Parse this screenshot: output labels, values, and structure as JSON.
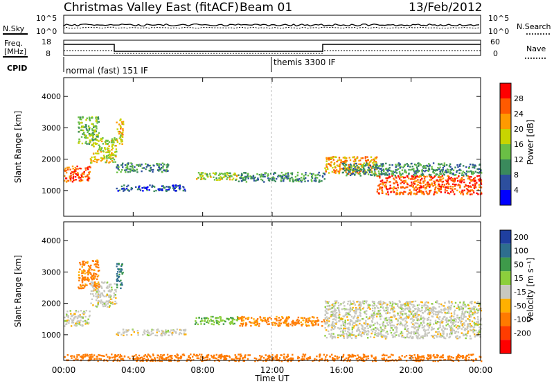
{
  "header": {
    "title": "Christmas Valley East (fitACF)",
    "beam": "Beam 01",
    "date": "13/Feb/2012"
  },
  "noise_panel": {
    "left_label": "N.Sky",
    "left_ticks": [
      "10^5",
      "10^0"
    ],
    "right_ticks": [
      "10^5",
      "10^0"
    ],
    "right_label": "N.Search"
  },
  "freq_panel": {
    "left_label_1": "Freq.",
    "left_label_2": "[MHz]",
    "left_ticks": [
      "18",
      "8"
    ],
    "right_ticks": [
      "60",
      "0"
    ],
    "right_label": "Nave"
  },
  "cpid": {
    "label": "CPID",
    "modes": [
      {
        "name": "normal (fast) 151 IF",
        "start": "00:00",
        "end": "12:00"
      },
      {
        "name": "themis 3300 IF",
        "start": "12:00",
        "end": "24:00"
      }
    ]
  },
  "power_panel": {
    "ylabel": "Slant Range [km]",
    "yticks": [
      "1000",
      "2000",
      "3000",
      "4000"
    ],
    "cbar_label": "Power [dB]",
    "cbar_ticks": [
      "4",
      "8",
      "12",
      "16",
      "20",
      "24",
      "28"
    ],
    "colors": [
      "#0000ff",
      "#2d4f9e",
      "#3a8a5c",
      "#6abf45",
      "#c8d400",
      "#ff9a00",
      "#ff5a00",
      "#ff0000"
    ]
  },
  "velocity_panel": {
    "ylabel": "Slant Range [km]",
    "yticks": [
      "1000",
      "2000",
      "3000",
      "4000"
    ],
    "cbar_label": "Velocity [m s⁻¹]",
    "cbar_ticks": [
      "200",
      "100",
      "50",
      "15",
      "-15",
      "-50",
      "-100",
      "-200"
    ],
    "colors": [
      "#1f3fa0",
      "#2e6e8e",
      "#3e9a4a",
      "#8ccf3c",
      "#c8c8c0",
      "#ffb000",
      "#ff7a00",
      "#ff3c00",
      "#ff0000"
    ]
  },
  "x_axis": {
    "label": "Time UT",
    "ticks": [
      "00:00",
      "04:00",
      "08:00",
      "12:00",
      "16:00",
      "20:00",
      "00:00"
    ]
  },
  "chart_data": {
    "type": "heatmap",
    "x_range_hours": [
      0,
      24
    ],
    "y_range_km": [
      180,
      4600
    ],
    "power_scatter_bands": [
      {
        "t0": 0.0,
        "t1": 1.5,
        "r0": 1300,
        "r1": 1800,
        "power_db": 26
      },
      {
        "t0": 1.5,
        "t1": 3.0,
        "r0": 1900,
        "r1": 2700,
        "power_db": 18
      },
      {
        "t0": 0.8,
        "t1": 2.0,
        "r0": 2500,
        "r1": 3400,
        "power_db": 14
      },
      {
        "t0": 3.0,
        "t1": 3.4,
        "r0": 2500,
        "r1": 3300,
        "power_db": 20
      },
      {
        "t0": 3.0,
        "t1": 6.0,
        "r0": 1600,
        "r1": 1900,
        "power_db": 10
      },
      {
        "t0": 3.0,
        "t1": 7.0,
        "r0": 1000,
        "r1": 1200,
        "power_db": 6
      },
      {
        "t0": 7.5,
        "t1": 10.0,
        "r0": 1350,
        "r1": 1600,
        "power_db": 16
      },
      {
        "t0": 10.0,
        "t1": 15.0,
        "r0": 1300,
        "r1": 1600,
        "power_db": 10
      },
      {
        "t0": 15.0,
        "t1": 18.0,
        "r0": 1550,
        "r1": 2100,
        "power_db": 22
      },
      {
        "t0": 18.0,
        "t1": 24.0,
        "r0": 900,
        "r1": 1500,
        "power_db": 26
      },
      {
        "t0": 16.0,
        "t1": 24.0,
        "r0": 1500,
        "r1": 1900,
        "power_db": 10
      }
    ],
    "velocity_scatter_bands": [
      {
        "t0": 0.0,
        "t1": 1.5,
        "r0": 1300,
        "r1": 1800,
        "velocity": 0
      },
      {
        "t0": 1.5,
        "t1": 3.0,
        "r0": 1900,
        "r1": 2700,
        "velocity": 0
      },
      {
        "t0": 0.8,
        "t1": 2.0,
        "r0": 2500,
        "r1": 3400,
        "velocity": -60
      },
      {
        "t0": 3.0,
        "t1": 3.4,
        "r0": 2500,
        "r1": 3300,
        "velocity": 100
      },
      {
        "t0": 3.0,
        "t1": 7.0,
        "r0": 1000,
        "r1": 1200,
        "velocity": 0
      },
      {
        "t0": 7.5,
        "t1": 10.0,
        "r0": 1350,
        "r1": 1600,
        "velocity": 40
      },
      {
        "t0": 10.0,
        "t1": 15.0,
        "r0": 1300,
        "r1": 1600,
        "velocity": -60
      },
      {
        "t0": 15.0,
        "t1": 24.0,
        "r0": 900,
        "r1": 2100,
        "velocity": 0
      },
      {
        "t0": 0.0,
        "t1": 24.0,
        "r0": 180,
        "r1": 400,
        "velocity": -80
      }
    ]
  }
}
